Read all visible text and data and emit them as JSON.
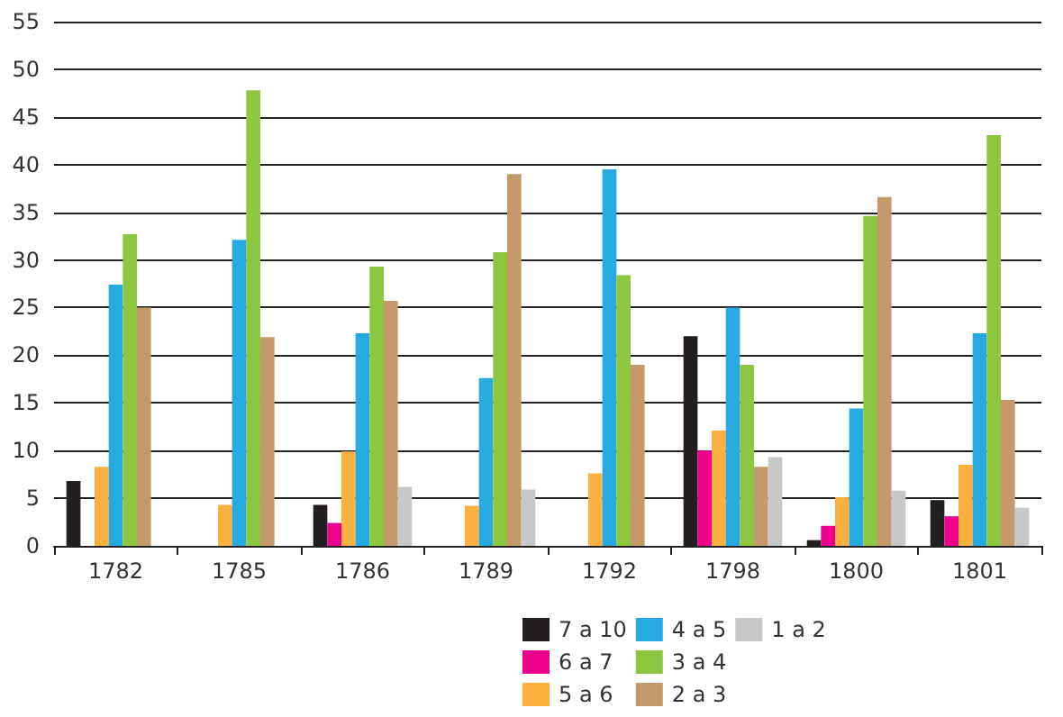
{
  "chart_data": {
    "type": "bar",
    "categories": [
      "1782",
      "1785",
      "1786",
      "1789",
      "1792",
      "1798",
      "1800",
      "1801"
    ],
    "series": [
      {
        "name": "7 a 10",
        "color": "#231f20",
        "values": [
          6.8,
          null,
          4.3,
          null,
          null,
          22,
          0.6,
          4.8
        ]
      },
      {
        "name": "6 a 7",
        "color": "#ec008c",
        "values": [
          null,
          null,
          2.4,
          null,
          null,
          10,
          2.1,
          3.1
        ]
      },
      {
        "name": "5 a 6",
        "color": "#fbb040",
        "values": [
          8.3,
          4.3,
          9.9,
          4.2,
          7.6,
          12.1,
          5.1,
          8.5
        ]
      },
      {
        "name": "4 a 5",
        "color": "#27aae1",
        "values": [
          27.4,
          32.1,
          22.3,
          17.6,
          39.5,
          25,
          14.4,
          22.3
        ]
      },
      {
        "name": "3 a 4",
        "color": "#8dc63f",
        "values": [
          32.7,
          47.8,
          29.3,
          30.8,
          28.4,
          19,
          34.6,
          43.1
        ]
      },
      {
        "name": "2 a 3",
        "color": "#c49a6c",
        "values": [
          25,
          21.9,
          25.7,
          39,
          19,
          8.3,
          36.6,
          15.3
        ]
      },
      {
        "name": "1 a 2",
        "color": "#c7c8ca",
        "values": [
          null,
          null,
          6.2,
          5.9,
          null,
          9.3,
          5.8,
          4.0
        ]
      }
    ],
    "ylim": [
      0,
      55
    ],
    "yticks": [
      0,
      5,
      10,
      15,
      20,
      25,
      30,
      35,
      40,
      45,
      50,
      55
    ],
    "grid": "y",
    "legend": "bottom right"
  }
}
